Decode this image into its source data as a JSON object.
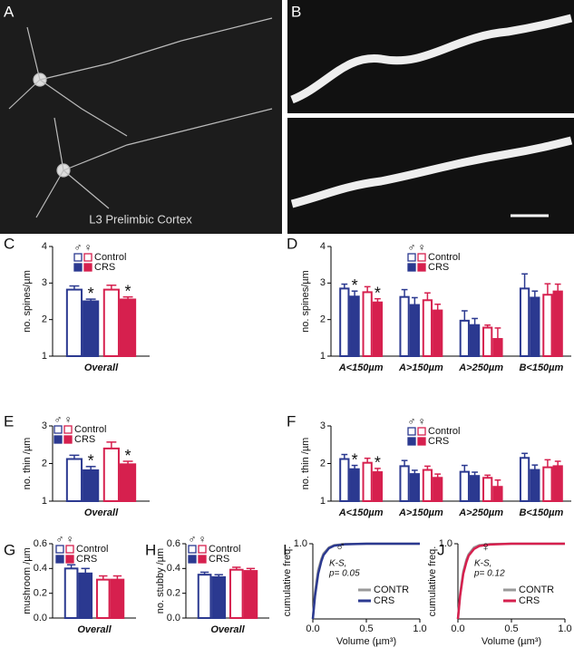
{
  "images": [
    {
      "panel": "A",
      "caption": "L3 Prelimbic Cortex"
    },
    {
      "panel": "B"
    }
  ],
  "chart_data": [
    {
      "type": "bar",
      "panel": "C",
      "ylabel": "no. spines/µm",
      "categories": [
        "Overall"
      ],
      "ylim": [
        1,
        4
      ],
      "yticks": [
        1,
        2,
        3,
        4
      ],
      "legend": {
        "symbols": [
          "♂",
          "♀"
        ],
        "labels": [
          "Control",
          "CRS"
        ]
      },
      "series": [
        {
          "sex": 0,
          "group": 0,
          "color": "#2b3990",
          "filled": false,
          "values": [
            2.82
          ],
          "errors": [
            0.1
          ]
        },
        {
          "sex": 0,
          "group": 1,
          "color": "#2b3990",
          "filled": true,
          "values": [
            2.5
          ],
          "errors": [
            0.06
          ]
        },
        {
          "sex": 1,
          "group": 0,
          "color": "#d6204e",
          "filled": false,
          "values": [
            2.82
          ],
          "errors": [
            0.12
          ]
        },
        {
          "sex": 1,
          "group": 1,
          "color": "#d6204e",
          "filled": true,
          "values": [
            2.55
          ],
          "errors": [
            0.07
          ]
        }
      ],
      "annotations": [
        {
          "text": "*",
          "series": 1,
          "index": 0
        },
        {
          "text": "*",
          "series": 3,
          "index": 0
        }
      ]
    },
    {
      "type": "bar",
      "panel": "D",
      "ylabel": "no. spines/µm",
      "categories": [
        "A<150µm",
        "A>150µm",
        "A>250µm",
        "B<150µm"
      ],
      "ylim": [
        1,
        4
      ],
      "yticks": [
        1,
        2,
        3,
        4
      ],
      "legend": {
        "symbols": [
          "♂",
          "♀"
        ],
        "labels": [
          "Control",
          "CRS"
        ]
      },
      "series": [
        {
          "sex": 0,
          "group": 0,
          "color": "#2b3990",
          "filled": false,
          "values": [
            2.85,
            2.62,
            1.97,
            2.85
          ],
          "errors": [
            0.12,
            0.2,
            0.27,
            0.4
          ]
        },
        {
          "sex": 0,
          "group": 1,
          "color": "#2b3990",
          "filled": true,
          "values": [
            2.63,
            2.4,
            1.85,
            2.6
          ],
          "errors": [
            0.15,
            0.2,
            0.18,
            0.18
          ]
        },
        {
          "sex": 1,
          "group": 0,
          "color": "#d6204e",
          "filled": false,
          "values": [
            2.75,
            2.53,
            1.78,
            2.68
          ],
          "errors": [
            0.15,
            0.2,
            0.07,
            0.3
          ]
        },
        {
          "sex": 1,
          "group": 1,
          "color": "#d6204e",
          "filled": true,
          "values": [
            2.47,
            2.25,
            1.47,
            2.77
          ],
          "errors": [
            0.1,
            0.17,
            0.3,
            0.2
          ]
        }
      ],
      "annotations": [
        {
          "text": "*",
          "series": 1,
          "index": 0
        },
        {
          "text": "*",
          "series": 3,
          "index": 0
        }
      ]
    },
    {
      "type": "bar",
      "panel": "E",
      "ylabel": "no. thin /µm",
      "categories": [
        "Overall"
      ],
      "ylim": [
        1,
        3
      ],
      "yticks": [
        1,
        2,
        3
      ],
      "legend": {
        "symbols": [
          "♂",
          "♀"
        ],
        "labels": [
          "Control",
          "CRS"
        ]
      },
      "series": [
        {
          "sex": 0,
          "group": 0,
          "color": "#2b3990",
          "filled": false,
          "values": [
            2.12
          ],
          "errors": [
            0.1
          ]
        },
        {
          "sex": 0,
          "group": 1,
          "color": "#2b3990",
          "filled": true,
          "values": [
            1.82
          ],
          "errors": [
            0.1
          ]
        },
        {
          "sex": 1,
          "group": 0,
          "color": "#d6204e",
          "filled": false,
          "values": [
            2.4
          ],
          "errors": [
            0.17
          ]
        },
        {
          "sex": 1,
          "group": 1,
          "color": "#d6204e",
          "filled": true,
          "values": [
            1.98
          ],
          "errors": [
            0.08
          ]
        }
      ],
      "annotations": [
        {
          "text": "*",
          "series": 1,
          "index": 0
        },
        {
          "text": "*",
          "series": 3,
          "index": 0
        }
      ]
    },
    {
      "type": "bar",
      "panel": "F",
      "ylabel": "no. thin /µm",
      "categories": [
        "A<150µm",
        "A>150µm",
        "A>250µm",
        "B<150µm"
      ],
      "ylim": [
        1,
        3
      ],
      "yticks": [
        1,
        2,
        3
      ],
      "legend": {
        "symbols": [
          "♂",
          "♀"
        ],
        "labels": [
          "Control",
          "CRS"
        ]
      },
      "series": [
        {
          "sex": 0,
          "group": 0,
          "color": "#2b3990",
          "filled": false,
          "values": [
            2.12,
            1.93,
            1.78,
            2.15
          ],
          "errors": [
            0.12,
            0.15,
            0.17,
            0.12
          ]
        },
        {
          "sex": 0,
          "group": 1,
          "color": "#2b3990",
          "filled": true,
          "values": [
            1.85,
            1.72,
            1.67,
            1.83
          ],
          "errors": [
            0.1,
            0.1,
            0.1,
            0.13
          ]
        },
        {
          "sex": 1,
          "group": 0,
          "color": "#d6204e",
          "filled": false,
          "values": [
            2.02,
            1.83,
            1.62,
            1.9
          ],
          "errors": [
            0.12,
            0.1,
            0.07,
            0.2
          ]
        },
        {
          "sex": 1,
          "group": 1,
          "color": "#d6204e",
          "filled": true,
          "values": [
            1.77,
            1.62,
            1.38,
            1.93
          ],
          "errors": [
            0.1,
            0.1,
            0.18,
            0.13
          ]
        }
      ],
      "annotations": [
        {
          "text": "*",
          "series": 1,
          "index": 0
        },
        {
          "text": "*",
          "series": 3,
          "index": 0
        }
      ]
    },
    {
      "type": "bar",
      "panel": "G",
      "ylabel": "mushroom /µm",
      "categories": [
        "Overall"
      ],
      "ylim": [
        0,
        0.6
      ],
      "yticks": [
        {
          "value": 0,
          "label": "0.0"
        },
        0.2,
        0.4,
        0.6
      ],
      "legend": {
        "symbols": [
          "♂",
          "♀"
        ],
        "labels": [
          "Control",
          "CRS"
        ]
      },
      "series": [
        {
          "sex": 0,
          "group": 0,
          "color": "#2b3990",
          "filled": false,
          "values": [
            0.4
          ],
          "errors": [
            0.03
          ]
        },
        {
          "sex": 0,
          "group": 1,
          "color": "#2b3990",
          "filled": true,
          "values": [
            0.36
          ],
          "errors": [
            0.04
          ]
        },
        {
          "sex": 1,
          "group": 0,
          "color": "#d6204e",
          "filled": false,
          "values": [
            0.31
          ],
          "errors": [
            0.03
          ]
        },
        {
          "sex": 1,
          "group": 1,
          "color": "#d6204e",
          "filled": true,
          "values": [
            0.31
          ],
          "errors": [
            0.03
          ]
        }
      ]
    },
    {
      "type": "bar",
      "panel": "H",
      "ylabel": "no. stubby /µm",
      "categories": [
        "Overall"
      ],
      "ylim": [
        0,
        0.6
      ],
      "yticks": [
        {
          "value": 0,
          "label": "0.0"
        },
        0.2,
        0.4,
        0.6
      ],
      "legend": {
        "symbols": [
          "♂",
          "♀"
        ],
        "labels": [
          "Control",
          "CRS"
        ]
      },
      "series": [
        {
          "sex": 0,
          "group": 0,
          "color": "#2b3990",
          "filled": false,
          "values": [
            0.35
          ],
          "errors": [
            0.02
          ]
        },
        {
          "sex": 0,
          "group": 1,
          "color": "#2b3990",
          "filled": true,
          "values": [
            0.33
          ],
          "errors": [
            0.02
          ]
        },
        {
          "sex": 1,
          "group": 0,
          "color": "#d6204e",
          "filled": false,
          "values": [
            0.39
          ],
          "errors": [
            0.02
          ]
        },
        {
          "sex": 1,
          "group": 1,
          "color": "#d6204e",
          "filled": true,
          "values": [
            0.38
          ],
          "errors": [
            0.02
          ]
        }
      ]
    },
    {
      "type": "line",
      "panel": "I",
      "symbol": "♂",
      "ylabel": "cumulative freq.",
      "xlabel": "Volume (µm³)",
      "annotations": [
        "K-S,",
        "p= 0.05"
      ],
      "x": [
        0,
        0.02,
        0.05,
        0.08,
        0.1,
        0.15,
        0.2,
        0.3,
        0.5,
        0.75,
        1
      ],
      "xlim": [
        0,
        1
      ],
      "xticks": [
        {
          "value": 0,
          "label": "0.0"
        },
        0.5,
        {
          "value": 1,
          "label": "1.0"
        }
      ],
      "ylim": [
        0,
        1
      ],
      "yticks": [
        {
          "value": 1,
          "label": "1.0"
        }
      ],
      "series": [
        {
          "name": "CONTR",
          "color": "#999999",
          "values": [
            0,
            0.35,
            0.65,
            0.8,
            0.87,
            0.95,
            0.98,
            0.995,
            1,
            1,
            1
          ]
        },
        {
          "name": "CRS",
          "color": "#2b3990",
          "values": [
            0,
            0.3,
            0.6,
            0.77,
            0.85,
            0.94,
            0.975,
            0.993,
            1,
            1,
            1
          ]
        }
      ]
    },
    {
      "type": "line",
      "panel": "J",
      "symbol": "♀",
      "ylabel": "cumulative freq.",
      "xlabel": "Volume (µm³)",
      "annotations": [
        "K-S,",
        "p= 0.12"
      ],
      "x": [
        0,
        0.02,
        0.05,
        0.08,
        0.1,
        0.15,
        0.2,
        0.3,
        0.5,
        0.75,
        1
      ],
      "xlim": [
        0,
        1
      ],
      "xticks": [
        {
          "value": 0,
          "label": "0.0"
        },
        0.5,
        {
          "value": 1,
          "label": "1.0"
        }
      ],
      "ylim": [
        0,
        1
      ],
      "yticks": [
        {
          "value": 1,
          "label": "1.0"
        }
      ],
      "series": [
        {
          "name": "CONTR",
          "color": "#999999",
          "values": [
            0,
            0.33,
            0.63,
            0.79,
            0.86,
            0.95,
            0.98,
            0.995,
            1,
            1,
            1
          ]
        },
        {
          "name": "CRS",
          "color": "#d6204e",
          "values": [
            0,
            0.3,
            0.6,
            0.76,
            0.84,
            0.93,
            0.97,
            0.99,
            1,
            1,
            1
          ]
        }
      ]
    }
  ]
}
